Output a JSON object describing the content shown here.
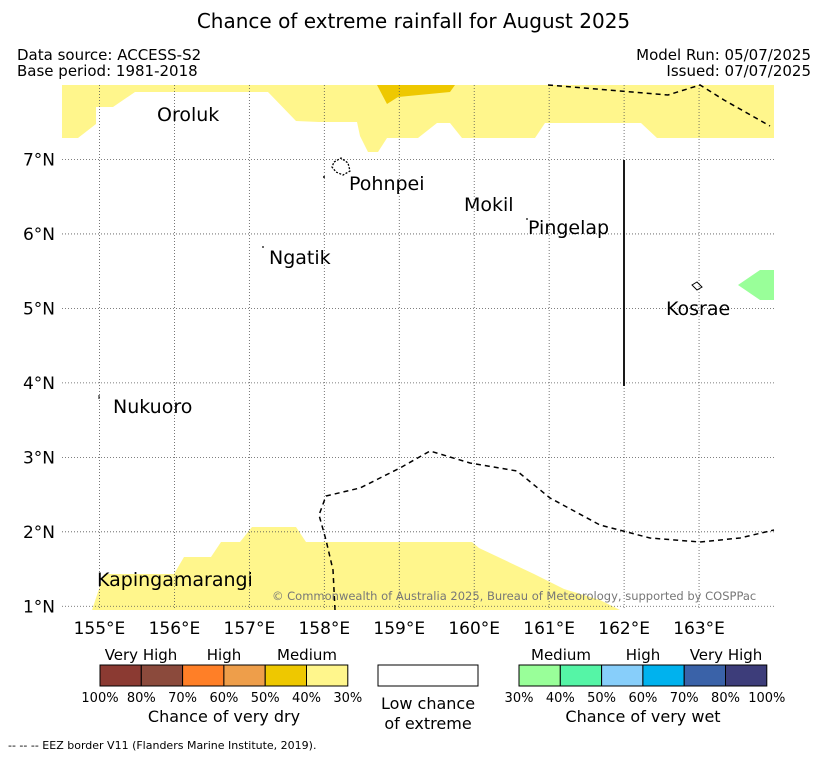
{
  "header": {
    "title": "Chance of extreme rainfall for August 2025",
    "data_source": "Data source: ACCESS-S2",
    "base_period": "Base period: 1981-2018",
    "model_run": "Model Run: 05/07/2025",
    "issued": "Issued: 07/07/2025"
  },
  "map": {
    "lon_range": [
      154.5,
      164
    ],
    "lat_range": [
      0.95,
      8
    ],
    "lon_ticks": [
      "155°E",
      "156°E",
      "157°E",
      "158°E",
      "159°E",
      "160°E",
      "161°E",
      "162°E",
      "163°E"
    ],
    "lat_ticks": [
      "1°N",
      "2°N",
      "3°N",
      "4°N",
      "5°N",
      "6°N",
      "7°N"
    ],
    "grid": true,
    "places": [
      {
        "name": "Oroluk"
      },
      {
        "name": "Pohnpei"
      },
      {
        "name": "Mokil"
      },
      {
        "name": "Pingelap"
      },
      {
        "name": "Ngatik"
      },
      {
        "name": "Kosrae"
      },
      {
        "name": "Nukuoro"
      },
      {
        "name": "Kapingamarangi"
      }
    ],
    "copyright": "© Commonwealth of Australia 2025, Bureau of Meteorology, supported by COSPPac"
  },
  "legend": {
    "dry": {
      "categories": [
        "Very High",
        "High",
        "Medium"
      ],
      "ticks": [
        "100%",
        "80%",
        "70%",
        "60%",
        "50%",
        "40%",
        "30%"
      ],
      "colors": [
        "#8b3a32",
        "#8b4a3c",
        "#ff7f27",
        "#ee9e4a",
        "#eec800",
        "#fff68c"
      ],
      "label": "Chance of very dry"
    },
    "neutral": {
      "line1": "Low chance",
      "line2": "of extreme"
    },
    "wet": {
      "categories": [
        "Medium",
        "High",
        "Very High"
      ],
      "ticks": [
        "30%",
        "40%",
        "50%",
        "60%",
        "70%",
        "80%",
        "100%"
      ],
      "colors": [
        "#99ff99",
        "#55f5a6",
        "#87cefa",
        "#00b2ee",
        "#3a62a8",
        "#3d3d7a"
      ],
      "label": "Chance of very wet"
    }
  },
  "footnote": "--  --  -- EEZ border V11 (Flanders Marine Institute, 2019)."
}
